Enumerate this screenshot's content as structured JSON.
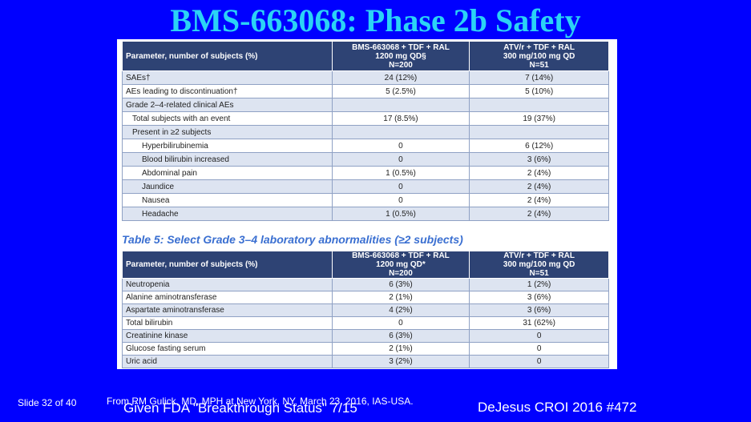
{
  "title": "BMS-663068:  Phase 2b Safety",
  "table1": {
    "headers": [
      "Parameter, number of subjects (%)",
      "BMS-663068 + TDF + RAL\n1200 mg QD§\nN=200",
      "ATV/r + TDF + RAL\n300 mg/100 mg QD\nN=51"
    ],
    "rows": [
      {
        "label": "SAEs†",
        "a": "24 (12%)",
        "b": "7 (14%)",
        "indent": 0,
        "shade": true
      },
      {
        "label": "AEs leading to discontinuation†",
        "a": "5 (2.5%)",
        "b": "5 (10%)",
        "indent": 0,
        "shade": false
      },
      {
        "label": "Grade 2–4-related clinical AEs",
        "a": "",
        "b": "",
        "indent": 0,
        "shade": true
      },
      {
        "label": "Total subjects with an event",
        "a": "17 (8.5%)",
        "b": "19 (37%)",
        "indent": 1,
        "shade": false
      },
      {
        "label": "Present in ≥2 subjects",
        "a": "",
        "b": "",
        "indent": 1,
        "shade": true
      },
      {
        "label": "Hyperbilirubinemia",
        "a": "0",
        "b": "6 (12%)",
        "indent": 2,
        "shade": false
      },
      {
        "label": "Blood bilirubin increased",
        "a": "0",
        "b": "3 (6%)",
        "indent": 2,
        "shade": true
      },
      {
        "label": "Abdominal pain",
        "a": "1 (0.5%)",
        "b": "2 (4%)",
        "indent": 2,
        "shade": false
      },
      {
        "label": "Jaundice",
        "a": "0",
        "b": "2 (4%)",
        "indent": 2,
        "shade": true
      },
      {
        "label": "Nausea",
        "a": "0",
        "b": "2 (4%)",
        "indent": 2,
        "shade": false
      },
      {
        "label": "Headache",
        "a": "1 (0.5%)",
        "b": "2 (4%)",
        "indent": 2,
        "shade": true
      }
    ]
  },
  "table2": {
    "caption": "Table 5: Select Grade 3–4 laboratory abnormalities (≥2 subjects)",
    "headers": [
      "Parameter, number of subjects (%)",
      "BMS-663068 + TDF + RAL\n1200 mg QD*\nN=200",
      "ATV/r + TDF + RAL\n300 mg/100 mg QD\nN=51"
    ],
    "rows": [
      {
        "label": "Neutropenia",
        "a": "6 (3%)",
        "b": "1 (2%)",
        "shade": true
      },
      {
        "label": "Alanine aminotransferase",
        "a": "2 (1%)",
        "b": "3 (6%)",
        "shade": false
      },
      {
        "label": "Aspartate aminotransferase",
        "a": "4 (2%)",
        "b": "3 (6%)",
        "shade": true
      },
      {
        "label": "Total bilirubin",
        "a": "0",
        "b": "31 (62%)",
        "shade": false
      },
      {
        "label": "Creatinine kinase",
        "a": "6 (3%)",
        "b": "0",
        "shade": true
      },
      {
        "label": "Glucose fasting serum",
        "a": "2 (1%)",
        "b": "0",
        "shade": false
      },
      {
        "label": "Uric acid",
        "a": "3 (2%)",
        "b": "0",
        "shade": true
      }
    ]
  },
  "footer": {
    "slide": "Slide 32 of 40",
    "from": "From RM Gulick, MD, MPH at New York, NY, March 23, 2016, IAS-USA.",
    "given": "Given FDA \"Breakthrough Status\" 7/15",
    "ref": "DeJesus CROI 2016 #472"
  }
}
